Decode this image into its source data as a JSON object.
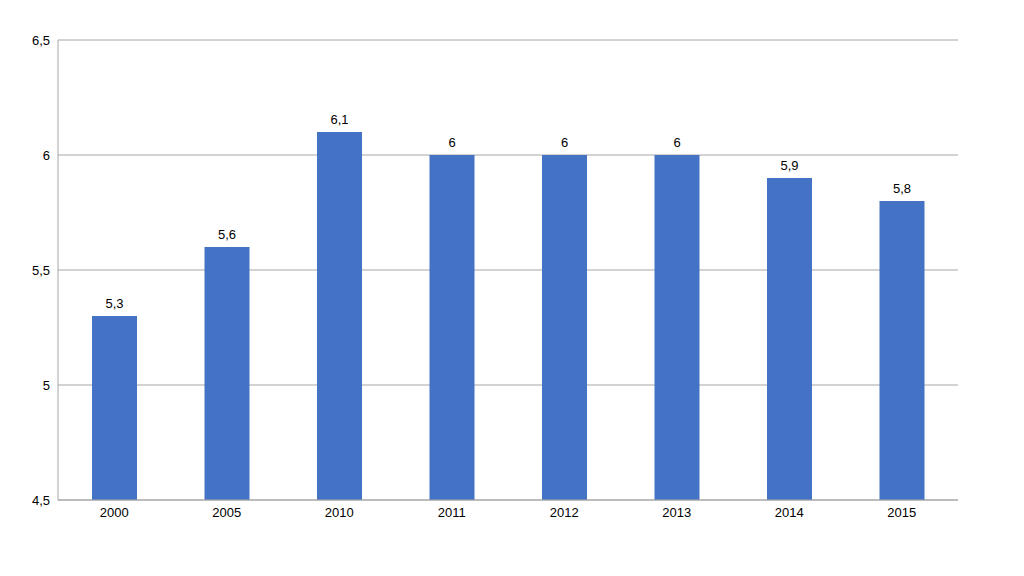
{
  "chart_data": {
    "type": "bar",
    "categories": [
      "2000",
      "2005",
      "2010",
      "2011",
      "2012",
      "2013",
      "2014",
      "2015"
    ],
    "values": [
      5.3,
      5.6,
      6.1,
      6,
      6,
      6,
      5.9,
      5.8
    ],
    "value_labels": [
      "5,3",
      "5,6",
      "6,1",
      "6",
      "6",
      "6",
      "5,9",
      "5,8"
    ],
    "color": "#4472c4",
    "ylim": [
      4.5,
      6.5
    ],
    "yticks": [
      {
        "value": 4.5,
        "label": "4,5"
      },
      5,
      {
        "value": 5.5,
        "label": "5,5"
      },
      6,
      {
        "value": 6.5,
        "label": "6,5"
      }
    ],
    "grid": true,
    "data_labels": true
  }
}
